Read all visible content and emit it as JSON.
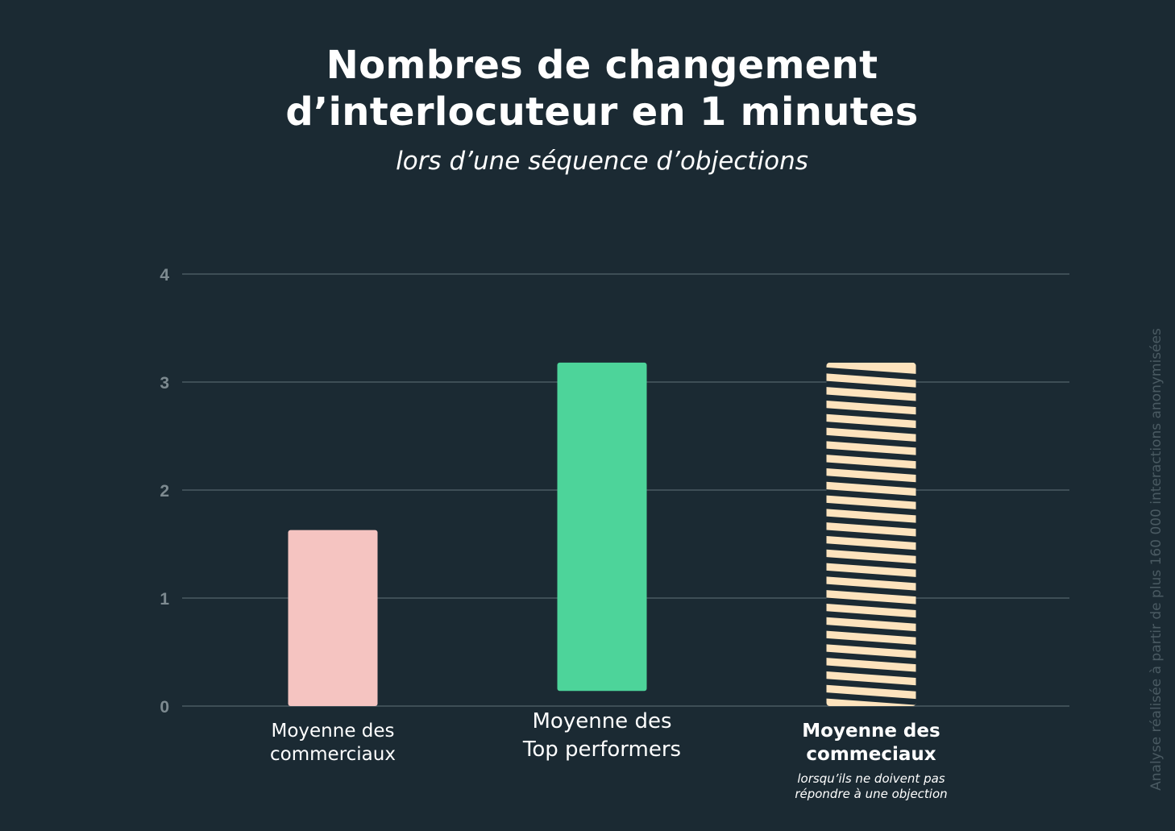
{
  "chart_data": {
    "type": "bar",
    "title_lines": [
      "Nombres de changement",
      "d’interlocuteur en 1 minutes"
    ],
    "subtitle": "lors d’une séquence d’objections",
    "ylim": [
      0,
      4
    ],
    "yticks": [
      0,
      1,
      2,
      3,
      4
    ],
    "grid": true,
    "bars": [
      {
        "label_lines": [
          "Moyenne des",
          "commerciaux"
        ],
        "note_lines": [],
        "bottom": 0,
        "value": 1.63,
        "color": "#f5c4c1",
        "pattern": "solid",
        "label_bold": false
      },
      {
        "label_lines": [
          "Moyenne des",
          "Top performers"
        ],
        "note_lines": [],
        "bottom": 0.14,
        "value": 3.18,
        "color": "#4dd49a",
        "pattern": "solid",
        "label_bold": false
      },
      {
        "label_lines": [
          "Moyenne des",
          "commeciaux"
        ],
        "note_lines": [
          "lorsqu’ils ne doivent pas",
          "répondre à une objection"
        ],
        "bottom": 0,
        "value": 3.18,
        "color": "#fde3bd",
        "pattern": "striped",
        "label_bold": true
      }
    ],
    "side_note": "Analyse réalisée à partir de plus 160 000 interactions anonymisées"
  },
  "colors": {
    "background": "#1b2a33",
    "grid": "#4a5a62",
    "tick": "#7d8a90",
    "stripe_dark": "#1b2a33"
  }
}
